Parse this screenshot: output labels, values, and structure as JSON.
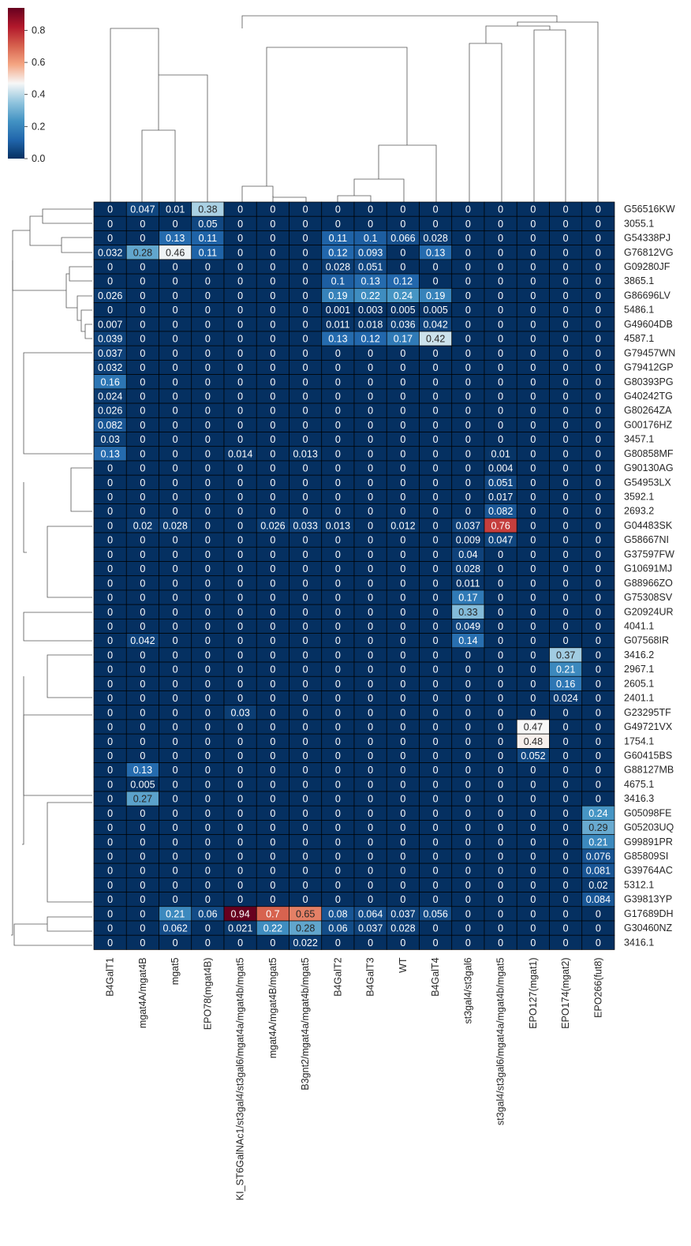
{
  "chart_data": {
    "type": "heatmap",
    "title": "",
    "xlabel": "",
    "ylabel": "",
    "colormap": "RdBu_r",
    "colorbar": {
      "min": 0.0,
      "max": 0.94,
      "ticks": [
        0.0,
        0.2,
        0.4,
        0.6,
        0.8
      ],
      "tick_labels": [
        "0.0",
        "0.2",
        "0.4",
        "0.6",
        "0.8"
      ]
    },
    "colors": {
      "low": "#053061",
      "mid": "#f7f7f7",
      "high": "#67001f",
      "grid": "#000000"
    },
    "columns": [
      "B4GalT1",
      "mgat4A/mgat4B",
      "mgat5",
      "EPO78(mgat4B)",
      "KI_ST6GalNAc1/st3gal4/st3gal6/mgat4a/mgat4b/mgat5",
      "mgat4A/mgat4B/mgat5",
      "B3gnt2/mgat4a/mgat4b/mgat5",
      "B4GalT2",
      "B4GalT3",
      "WT",
      "B4GalT4",
      "st3gal4/st3gal6",
      "st3gal4/st3gal6/mgat4a/mgat4b/mgat5",
      "EPO127(mgat1)",
      "EPO174(mgat2)",
      "EPO266(fut8)"
    ],
    "rows": [
      {
        "name": "G56516KW",
        "values": [
          "0",
          "0.047",
          "0.01",
          "0.38",
          "0",
          "0",
          "0",
          "0",
          "0",
          "0",
          "0",
          "0",
          "0",
          "0",
          "0",
          "0"
        ]
      },
      {
        "name": "3055.1",
        "values": [
          "0",
          "0",
          "0",
          "0.05",
          "0",
          "0",
          "0",
          "0",
          "0",
          "0",
          "0",
          "0",
          "0",
          "0",
          "0",
          "0"
        ]
      },
      {
        "name": "G54338PJ",
        "values": [
          "0",
          "0",
          "0.13",
          "0.11",
          "0",
          "0",
          "0",
          "0.11",
          "0.1",
          "0.066",
          "0.028",
          "0",
          "0",
          "0",
          "0",
          "0"
        ]
      },
      {
        "name": "G76812VG",
        "values": [
          "0.032",
          "0.28",
          "0.46",
          "0.11",
          "0",
          "0",
          "0",
          "0.12",
          "0.093",
          "0",
          "0.13",
          "0",
          "0",
          "0",
          "0",
          "0"
        ]
      },
      {
        "name": "G09280JF",
        "values": [
          "0",
          "0",
          "0",
          "0",
          "0",
          "0",
          "0",
          "0.028",
          "0.051",
          "0",
          "0",
          "0",
          "0",
          "0",
          "0",
          "0"
        ]
      },
      {
        "name": "3865.1",
        "values": [
          "0",
          "0",
          "0",
          "0",
          "0",
          "0",
          "0",
          "0.1",
          "0.13",
          "0.12",
          "0",
          "0",
          "0",
          "0",
          "0",
          "0"
        ]
      },
      {
        "name": "G86696LV",
        "values": [
          "0.026",
          "0",
          "0",
          "0",
          "0",
          "0",
          "0",
          "0.19",
          "0.22",
          "0.24",
          "0.19",
          "0",
          "0",
          "0",
          "0",
          "0"
        ]
      },
      {
        "name": "5486.1",
        "values": [
          "0",
          "0",
          "0",
          "0",
          "0",
          "0",
          "0",
          "0.001",
          "0.003",
          "0.005",
          "0.005",
          "0",
          "0",
          "0",
          "0",
          "0"
        ]
      },
      {
        "name": "G49604DB",
        "values": [
          "0.007",
          "0",
          "0",
          "0",
          "0",
          "0",
          "0",
          "0.011",
          "0.018",
          "0.036",
          "0.042",
          "0",
          "0",
          "0",
          "0",
          "0"
        ]
      },
      {
        "name": "4587.1",
        "values": [
          "0.039",
          "0",
          "0",
          "0",
          "0",
          "0",
          "0",
          "0.13",
          "0.12",
          "0.17",
          "0.42",
          "0",
          "0",
          "0",
          "0",
          "0"
        ]
      },
      {
        "name": "G79457WN",
        "values": [
          "0.037",
          "0",
          "0",
          "0",
          "0",
          "0",
          "0",
          "0",
          "0",
          "0",
          "0",
          "0",
          "0",
          "0",
          "0",
          "0"
        ]
      },
      {
        "name": "G79412GP",
        "values": [
          "0.032",
          "0",
          "0",
          "0",
          "0",
          "0",
          "0",
          "0",
          "0",
          "0",
          "0",
          "0",
          "0",
          "0",
          "0",
          "0"
        ]
      },
      {
        "name": "G80393PG",
        "values": [
          "0.16",
          "0",
          "0",
          "0",
          "0",
          "0",
          "0",
          "0",
          "0",
          "0",
          "0",
          "0",
          "0",
          "0",
          "0",
          "0"
        ]
      },
      {
        "name": "G40242TG",
        "values": [
          "0.024",
          "0",
          "0",
          "0",
          "0",
          "0",
          "0",
          "0",
          "0",
          "0",
          "0",
          "0",
          "0",
          "0",
          "0",
          "0"
        ]
      },
      {
        "name": "G80264ZA",
        "values": [
          "0.026",
          "0",
          "0",
          "0",
          "0",
          "0",
          "0",
          "0",
          "0",
          "0",
          "0",
          "0",
          "0",
          "0",
          "0",
          "0"
        ]
      },
      {
        "name": "G00176HZ",
        "values": [
          "0.082",
          "0",
          "0",
          "0",
          "0",
          "0",
          "0",
          "0",
          "0",
          "0",
          "0",
          "0",
          "0",
          "0",
          "0",
          "0"
        ]
      },
      {
        "name": "3457.1",
        "values": [
          "0.03",
          "0",
          "0",
          "0",
          "0",
          "0",
          "0",
          "0",
          "0",
          "0",
          "0",
          "0",
          "0",
          "0",
          "0",
          "0"
        ]
      },
      {
        "name": "G80858MF",
        "values": [
          "0.13",
          "0",
          "0",
          "0",
          "0.014",
          "0",
          "0.013",
          "0",
          "0",
          "0",
          "0",
          "0",
          "0.01",
          "0",
          "0",
          "0"
        ]
      },
      {
        "name": "G90130AG",
        "values": [
          "0",
          "0",
          "0",
          "0",
          "0",
          "0",
          "0",
          "0",
          "0",
          "0",
          "0",
          "0",
          "0.004",
          "0",
          "0",
          "0"
        ]
      },
      {
        "name": "G54953LX",
        "values": [
          "0",
          "0",
          "0",
          "0",
          "0",
          "0",
          "0",
          "0",
          "0",
          "0",
          "0",
          "0",
          "0.051",
          "0",
          "0",
          "0"
        ]
      },
      {
        "name": "3592.1",
        "values": [
          "0",
          "0",
          "0",
          "0",
          "0",
          "0",
          "0",
          "0",
          "0",
          "0",
          "0",
          "0",
          "0.017",
          "0",
          "0",
          "0"
        ]
      },
      {
        "name": "2693.2",
        "values": [
          "0",
          "0",
          "0",
          "0",
          "0",
          "0",
          "0",
          "0",
          "0",
          "0",
          "0",
          "0",
          "0.082",
          "0",
          "0",
          "0"
        ]
      },
      {
        "name": "G04483SK",
        "values": [
          "0",
          "0.02",
          "0.028",
          "0",
          "0",
          "0.026",
          "0.033",
          "0.013",
          "0",
          "0.012",
          "0",
          "0.037",
          "0.76",
          "0",
          "0",
          "0"
        ]
      },
      {
        "name": "G58667NI",
        "values": [
          "0",
          "0",
          "0",
          "0",
          "0",
          "0",
          "0",
          "0",
          "0",
          "0",
          "0",
          "0.009",
          "0.047",
          "0",
          "0",
          "0"
        ]
      },
      {
        "name": "G37597FW",
        "values": [
          "0",
          "0",
          "0",
          "0",
          "0",
          "0",
          "0",
          "0",
          "0",
          "0",
          "0",
          "0.04",
          "0",
          "0",
          "0",
          "0"
        ]
      },
      {
        "name": "G10691MJ",
        "values": [
          "0",
          "0",
          "0",
          "0",
          "0",
          "0",
          "0",
          "0",
          "0",
          "0",
          "0",
          "0.028",
          "0",
          "0",
          "0",
          "0"
        ]
      },
      {
        "name": "G88966ZO",
        "values": [
          "0",
          "0",
          "0",
          "0",
          "0",
          "0",
          "0",
          "0",
          "0",
          "0",
          "0",
          "0.011",
          "0",
          "0",
          "0",
          "0"
        ]
      },
      {
        "name": "G75308SV",
        "values": [
          "0",
          "0",
          "0",
          "0",
          "0",
          "0",
          "0",
          "0",
          "0",
          "0",
          "0",
          "0.17",
          "0",
          "0",
          "0",
          "0"
        ]
      },
      {
        "name": "G20924UR",
        "values": [
          "0",
          "0",
          "0",
          "0",
          "0",
          "0",
          "0",
          "0",
          "0",
          "0",
          "0",
          "0.33",
          "0",
          "0",
          "0",
          "0"
        ]
      },
      {
        "name": "4041.1",
        "values": [
          "0",
          "0",
          "0",
          "0",
          "0",
          "0",
          "0",
          "0",
          "0",
          "0",
          "0",
          "0.049",
          "0",
          "0",
          "0",
          "0"
        ]
      },
      {
        "name": "G07568IR",
        "values": [
          "0",
          "0.042",
          "0",
          "0",
          "0",
          "0",
          "0",
          "0",
          "0",
          "0",
          "0",
          "0.14",
          "0",
          "0",
          "0",
          "0"
        ]
      },
      {
        "name": "3416.2",
        "values": [
          "0",
          "0",
          "0",
          "0",
          "0",
          "0",
          "0",
          "0",
          "0",
          "0",
          "0",
          "0",
          "0",
          "0",
          "0.37",
          "0"
        ]
      },
      {
        "name": "2967.1",
        "values": [
          "0",
          "0",
          "0",
          "0",
          "0",
          "0",
          "0",
          "0",
          "0",
          "0",
          "0",
          "0",
          "0",
          "0",
          "0.21",
          "0"
        ]
      },
      {
        "name": "2605.1",
        "values": [
          "0",
          "0",
          "0",
          "0",
          "0",
          "0",
          "0",
          "0",
          "0",
          "0",
          "0",
          "0",
          "0",
          "0",
          "0.16",
          "0"
        ]
      },
      {
        "name": "2401.1",
        "values": [
          "0",
          "0",
          "0",
          "0",
          "0",
          "0",
          "0",
          "0",
          "0",
          "0",
          "0",
          "0",
          "0",
          "0",
          "0.024",
          "0"
        ]
      },
      {
        "name": "G23295TF",
        "values": [
          "0",
          "0",
          "0",
          "0",
          "0.03",
          "0",
          "0",
          "0",
          "0",
          "0",
          "0",
          "0",
          "0",
          "0",
          "0",
          "0"
        ]
      },
      {
        "name": "G49721VX",
        "values": [
          "0",
          "0",
          "0",
          "0",
          "0",
          "0",
          "0",
          "0",
          "0",
          "0",
          "0",
          "0",
          "0",
          "0.47",
          "0",
          "0"
        ]
      },
      {
        "name": "1754.1",
        "values": [
          "0",
          "0",
          "0",
          "0",
          "0",
          "0",
          "0",
          "0",
          "0",
          "0",
          "0",
          "0",
          "0",
          "0.48",
          "0",
          "0"
        ]
      },
      {
        "name": "G60415BS",
        "values": [
          "0",
          "0",
          "0",
          "0",
          "0",
          "0",
          "0",
          "0",
          "0",
          "0",
          "0",
          "0",
          "0",
          "0.052",
          "0",
          "0"
        ]
      },
      {
        "name": "G88127MB",
        "values": [
          "0",
          "0.13",
          "0",
          "0",
          "0",
          "0",
          "0",
          "0",
          "0",
          "0",
          "0",
          "0",
          "0",
          "0",
          "0",
          "0"
        ]
      },
      {
        "name": "4675.1",
        "values": [
          "0",
          "0.005",
          "0",
          "0",
          "0",
          "0",
          "0",
          "0",
          "0",
          "0",
          "0",
          "0",
          "0",
          "0",
          "0",
          "0"
        ]
      },
      {
        "name": "3416.3",
        "values": [
          "0",
          "0.27",
          "0",
          "0",
          "0",
          "0",
          "0",
          "0",
          "0",
          "0",
          "0",
          "0",
          "0",
          "0",
          "0",
          "0"
        ]
      },
      {
        "name": "G05098FE",
        "values": [
          "0",
          "0",
          "0",
          "0",
          "0",
          "0",
          "0",
          "0",
          "0",
          "0",
          "0",
          "0",
          "0",
          "0",
          "0",
          "0.24"
        ]
      },
      {
        "name": "G05203UQ",
        "values": [
          "0",
          "0",
          "0",
          "0",
          "0",
          "0",
          "0",
          "0",
          "0",
          "0",
          "0",
          "0",
          "0",
          "0",
          "0",
          "0.29"
        ]
      },
      {
        "name": "G99891PR",
        "values": [
          "0",
          "0",
          "0",
          "0",
          "0",
          "0",
          "0",
          "0",
          "0",
          "0",
          "0",
          "0",
          "0",
          "0",
          "0",
          "0.21"
        ]
      },
      {
        "name": "G85809SI",
        "values": [
          "0",
          "0",
          "0",
          "0",
          "0",
          "0",
          "0",
          "0",
          "0",
          "0",
          "0",
          "0",
          "0",
          "0",
          "0",
          "0.076"
        ]
      },
      {
        "name": "G39764AC",
        "values": [
          "0",
          "0",
          "0",
          "0",
          "0",
          "0",
          "0",
          "0",
          "0",
          "0",
          "0",
          "0",
          "0",
          "0",
          "0",
          "0.081"
        ]
      },
      {
        "name": "5312.1",
        "values": [
          "0",
          "0",
          "0",
          "0",
          "0",
          "0",
          "0",
          "0",
          "0",
          "0",
          "0",
          "0",
          "0",
          "0",
          "0",
          "0.02"
        ]
      },
      {
        "name": "G39813YP",
        "values": [
          "0",
          "0",
          "0",
          "0",
          "0",
          "0",
          "0",
          "0",
          "0",
          "0",
          "0",
          "0",
          "0",
          "0",
          "0",
          "0.084"
        ]
      },
      {
        "name": "G17689DH",
        "values": [
          "0",
          "0",
          "0.21",
          "0.06",
          "0.94",
          "0.7",
          "0.65",
          "0.08",
          "0.064",
          "0.037",
          "0.056",
          "0",
          "0",
          "0",
          "0",
          "0"
        ]
      },
      {
        "name": "G30460NZ",
        "values": [
          "0",
          "0",
          "0.062",
          "0",
          "0.021",
          "0.22",
          "0.28",
          "0.06",
          "0.037",
          "0.028",
          "0",
          "0",
          "0",
          "0",
          "0",
          "0"
        ]
      },
      {
        "name": "3416.1",
        "values": [
          "0",
          "0",
          "0",
          "0",
          "0",
          "0",
          "0.022",
          "0",
          "0",
          "0",
          "0",
          "0",
          "0",
          "0",
          "0",
          "0"
        ]
      }
    ]
  }
}
